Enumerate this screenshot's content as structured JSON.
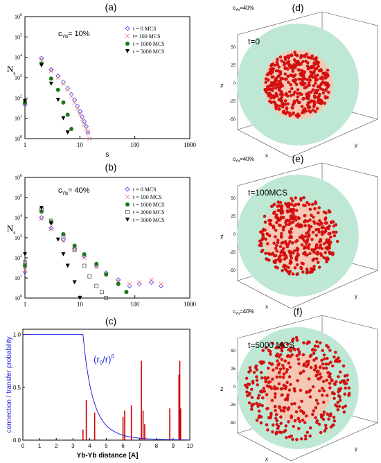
{
  "panels": {
    "a": {
      "label": "(a)",
      "annotation_prefix": "c",
      "annotation_sub": "Yb",
      "annotation_suffix": "= 10%",
      "legend": [
        "t = 0 MCS",
        "t= 100 MCS",
        "t = 1000 MCS",
        "t =  5000 MCS"
      ],
      "ylabel": "N",
      "ylabel_sub": "s",
      "xlabel": "s",
      "xticks": [
        "1",
        "10",
        "100",
        "1000"
      ],
      "yticks": [
        "10",
        "10",
        "10",
        "10",
        "10",
        "10",
        "10"
      ],
      "ytick_exps": [
        "0",
        "1",
        "2",
        "3",
        "4",
        "5",
        "6"
      ]
    },
    "b": {
      "label": "(b)",
      "annotation_prefix": "c",
      "annotation_sub": "Yb",
      "annotation_suffix": "= 40%",
      "legend": [
        "t = 0 MCS",
        "t = 100 MCS",
        "t = 1000 MCS",
        "t = 2000 MCS",
        "t = 5000 MCS"
      ],
      "ylabel": "N",
      "ylabel_sub": "s",
      "xlabel": "s",
      "xticks": [
        "1",
        "10",
        "100",
        "1000"
      ],
      "yticks": [
        "10",
        "10",
        "10",
        "10",
        "10",
        "10",
        "10"
      ],
      "ytick_exps": [
        "0",
        "1",
        "2",
        "3",
        "4",
        "5",
        "6"
      ]
    },
    "c": {
      "label": "(c)",
      "ylabel": "connection / transfer probability",
      "xlabel": "Yb-Yb distance [A]",
      "curve_label_pre": "(r",
      "curve_label_sub": "0",
      "curve_label_mid": "/r)",
      "curve_label_sup": "6",
      "xticks": [
        "0",
        "1",
        "2",
        "3",
        "4",
        "5",
        "6",
        "7",
        "8",
        "9",
        "10"
      ],
      "yticks": [
        "0.0",
        "0.5",
        "1.0"
      ]
    },
    "d": {
      "label": "(d)",
      "conc_prefix": "c",
      "conc_sub": "Yb",
      "conc_suffix": "=40%",
      "time": "t=0"
    },
    "e": {
      "label": "(e)",
      "conc_prefix": "c",
      "conc_sub": "Yb",
      "conc_suffix": "=40%",
      "time": "t=100MCS"
    },
    "f": {
      "label": "(f)",
      "conc_prefix": "c",
      "conc_sub": "Yb",
      "conc_suffix": "=40%",
      "time": "t=5000 MCS"
    },
    "axis3d": {
      "z": "z",
      "x": "x",
      "y": "y",
      "zticks": [
        "50",
        "25",
        "0",
        "-25",
        "-50"
      ]
    }
  },
  "colors": {
    "t0": "#3a3af0",
    "t100": "#f07a7a",
    "t1000": "#1a7a1a",
    "t2000": "#555555",
    "t5000": "#000000",
    "curve": "#2222dd",
    "bars": "#cc0000",
    "outer_sphere": "#bfe8d4",
    "inner_sphere": "#f4c8b4",
    "points": "#e01010"
  },
  "chart_data": [
    {
      "type": "scatter",
      "title": "(a)",
      "xlabel": "s",
      "ylabel": "N_s",
      "xscale": "log",
      "yscale": "log",
      "xlim": [
        1,
        1000
      ],
      "ylim": [
        1,
        1000000
      ],
      "series": [
        {
          "name": "t = 0 MCS",
          "x": [
            1,
            2,
            3,
            4,
            5,
            6,
            7,
            8,
            9,
            10,
            11,
            12,
            13,
            14
          ],
          "y": [
            50,
            9000,
            2500,
            1200,
            600,
            300,
            150,
            80,
            40,
            22,
            12,
            7,
            4,
            2
          ]
        },
        {
          "name": "t= 100 MCS",
          "x": [
            1,
            2,
            3,
            4,
            5,
            6,
            7,
            8,
            9,
            10,
            11,
            12,
            13,
            14,
            15
          ],
          "y": [
            50,
            8000,
            2200,
            1000,
            500,
            250,
            120,
            60,
            30,
            16,
            9,
            5,
            3,
            2,
            1
          ]
        },
        {
          "name": "t = 1000 MCS",
          "x": [
            1,
            2,
            3,
            4,
            5,
            6,
            7
          ],
          "y": [
            60,
            5000,
            900,
            250,
            60,
            15,
            3
          ]
        },
        {
          "name": "t =  5000 MCS",
          "x": [
            1,
            2,
            3,
            4,
            5,
            6
          ],
          "y": [
            70,
            4000,
            500,
            80,
            10,
            2
          ]
        }
      ]
    },
    {
      "type": "scatter",
      "title": "(b)",
      "xlabel": "s",
      "ylabel": "N_s",
      "xscale": "log",
      "yscale": "log",
      "xlim": [
        1,
        1000
      ],
      "ylim": [
        1,
        1000000
      ],
      "series": [
        {
          "name": "t = 0 MCS",
          "x": [
            1,
            2,
            3,
            5,
            8,
            12,
            20,
            30,
            50,
            80,
            120,
            200,
            300
          ],
          "y": [
            20,
            10000,
            3000,
            800,
            300,
            120,
            40,
            18,
            8,
            4,
            5,
            6,
            4
          ]
        },
        {
          "name": "t = 100 MCS",
          "x": [
            1,
            2,
            3,
            5,
            8,
            12,
            20,
            30,
            50,
            80,
            120,
            200,
            300
          ],
          "y": [
            25,
            9000,
            2800,
            700,
            250,
            100,
            35,
            15,
            7,
            5,
            6,
            8,
            5
          ]
        },
        {
          "name": "t = 1000 MCS",
          "x": [
            1,
            2,
            3,
            5,
            8,
            12,
            20,
            30,
            50,
            70
          ],
          "y": [
            40,
            20000,
            6000,
            1500,
            400,
            150,
            50,
            15,
            5,
            2
          ]
        },
        {
          "name": "t = 2000 MCS",
          "x": [
            1,
            2,
            3,
            5,
            8,
            12,
            15,
            20,
            25,
            30
          ],
          "y": [
            60,
            25000,
            7000,
            1200,
            250,
            40,
            12,
            4,
            2,
            1
          ]
        },
        {
          "name": "t = 5000 MCS",
          "x": [
            1,
            2,
            3,
            4,
            5,
            6,
            8,
            10
          ],
          "y": [
            150,
            30000,
            5000,
            800,
            150,
            40,
            6,
            1
          ]
        }
      ]
    },
    {
      "type": "line",
      "title": "(c)",
      "xlabel": "Yb-Yb distance [A]",
      "ylabel": "connection / transfer probability",
      "xlim": [
        0,
        10
      ],
      "ylim": [
        0,
        1.05
      ],
      "series": [
        {
          "name": "(r0/r)6",
          "x": [
            0,
            3.5,
            3.7,
            4,
            4.5,
            5,
            6,
            7,
            8,
            9,
            10
          ],
          "y": [
            1,
            1,
            0.7,
            0.44,
            0.23,
            0.13,
            0.044,
            0.018,
            0.008,
            0.004,
            0.0022
          ]
        }
      ],
      "bars": {
        "x": [
          3.6,
          3.8,
          4.3,
          6.0,
          6.1,
          6.5,
          7.1,
          7.2,
          7.3,
          8.8,
          9.35,
          9.4,
          9.45
        ],
        "y": [
          0.1,
          0.38,
          0.26,
          0.22,
          0.28,
          0.33,
          0.75,
          0.28,
          0.15,
          0.3,
          0.62,
          0.75,
          0.3
        ]
      }
    }
  ]
}
